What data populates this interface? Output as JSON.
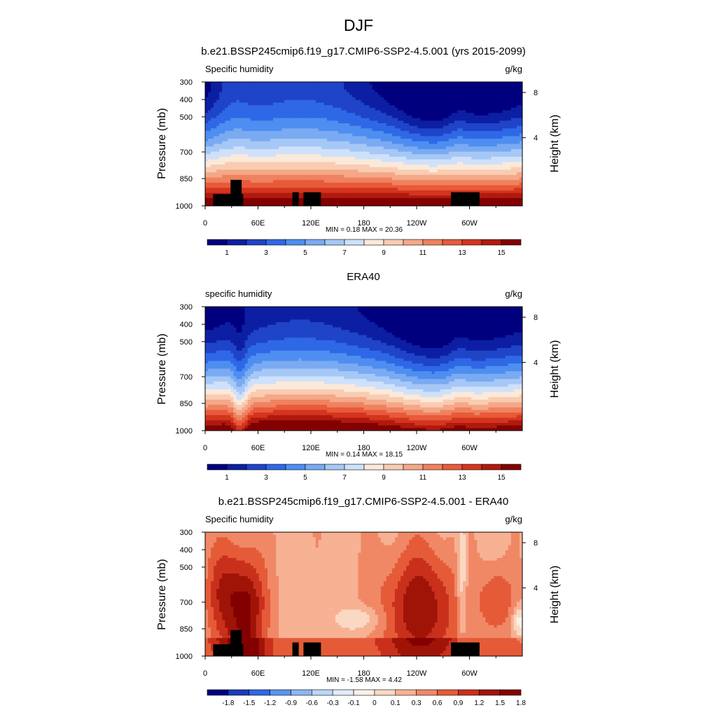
{
  "figure": {
    "title": "DJF"
  },
  "colors": {
    "abs_palette": [
      "#00007f",
      "#0c1fa3",
      "#1f44c8",
      "#2f68e6",
      "#4e8ef0",
      "#7aaaf2",
      "#a6c8f6",
      "#cfe1fa",
      "#fbe9da",
      "#f9ccb2",
      "#f4a888",
      "#ef825f",
      "#e85a3a",
      "#d4351e",
      "#b01a0e",
      "#830000"
    ],
    "diff_palette": [
      "#00007f",
      "#1b3aba",
      "#2f68e6",
      "#5b94f0",
      "#8cb6f4",
      "#bbd5f8",
      "#e2ecfc",
      "#fdf0e6",
      "#fbd8c2",
      "#f7b193",
      "#f08866",
      "#e55b38",
      "#c9301c",
      "#a01408",
      "#830000"
    ]
  },
  "chart_data": [
    {
      "type": "heatmap",
      "title": "b.e21.BSSP245cmip6.f19_g17.CMIP6-SSP2-4.5.001 (yrs 2015-2099)",
      "left_label": "Specific humidity",
      "right_label": "g/kg",
      "ylabel": "Pressure (mb)",
      "y2label": "Height (km)",
      "xticks": [
        "0",
        "60E",
        "120E",
        "180",
        "120W",
        "60W"
      ],
      "yticks": [
        "300",
        "400",
        "500",
        "700",
        "850",
        "1000"
      ],
      "y2ticks": [
        "8",
        "4"
      ],
      "stats": "MIN =   0.18  MAX =  20.36",
      "colorbar_labels": [
        "1",
        "3",
        "5",
        "7",
        "9",
        "11",
        "13",
        "15"
      ],
      "min": 0.18,
      "max": 20.36,
      "masked_terrain": true
    },
    {
      "type": "heatmap",
      "title": "ERA40",
      "left_label": "specific humidity",
      "right_label": "g/kg",
      "ylabel": "Pressure (mb)",
      "y2label": "Height (km)",
      "xticks": [
        "0",
        "60E",
        "120E",
        "180",
        "120W",
        "60W"
      ],
      "yticks": [
        "300",
        "400",
        "500",
        "700",
        "850",
        "1000"
      ],
      "y2ticks": [
        "8",
        "4"
      ],
      "stats": "MIN =   0.14  MAX =  18.15",
      "colorbar_labels": [
        "1",
        "3",
        "5",
        "7",
        "9",
        "11",
        "13",
        "15"
      ],
      "min": 0.14,
      "max": 18.15,
      "masked_terrain": false
    },
    {
      "type": "heatmap",
      "title": "b.e21.BSSP245cmip6.f19_g17.CMIP6-SSP2-4.5.001 - ERA40",
      "left_label": "Specific humidity",
      "right_label": "g/kg",
      "ylabel": "Pressure (mb)",
      "y2label": "Height (km)",
      "xticks": [
        "0",
        "60E",
        "120E",
        "180",
        "120W",
        "60W"
      ],
      "yticks": [
        "300",
        "400",
        "500",
        "700",
        "850",
        "1000"
      ],
      "y2ticks": [
        "8",
        "4"
      ],
      "stats": "MIN =  -1.58  MAX =   4.42",
      "colorbar_labels": [
        "-1.8",
        "-1.5",
        "-1.2",
        "-0.9",
        "-0.6",
        "-0.3",
        "-0.1",
        "0",
        "0.1",
        "0.3",
        "0.6",
        "0.9",
        "1.2",
        "1.5",
        "1.8"
      ],
      "min": -1.58,
      "max": 4.42,
      "masked_terrain": true
    }
  ]
}
